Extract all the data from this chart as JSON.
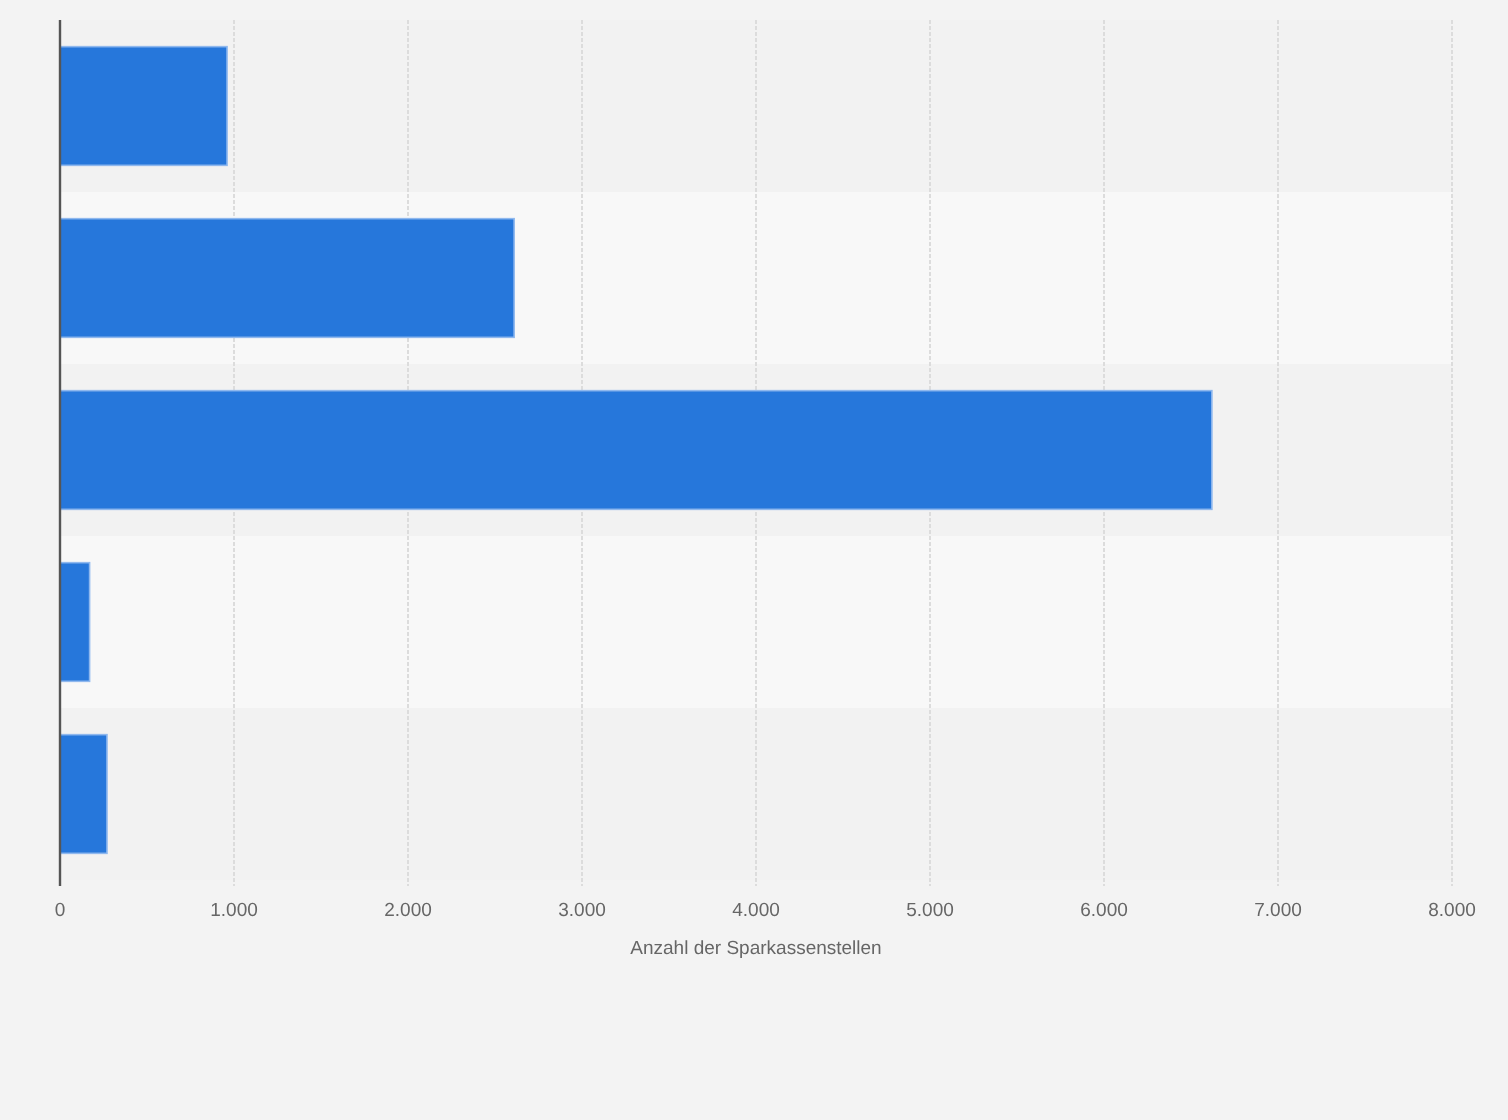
{
  "chart_data": {
    "type": "bar",
    "orientation": "horizontal",
    "categories": [
      null,
      null,
      null,
      null,
      null
    ],
    "values": [
      960,
      2610,
      6620,
      170,
      270
    ],
    "color": "#2677db",
    "xlabel": "Anzahl der Sparkassenstellen",
    "xlim": [
      0,
      8000
    ],
    "xticks": [
      0,
      {
        "value": 1000,
        "label": "1.000"
      },
      {
        "value": 2000,
        "label": "2.000"
      },
      {
        "value": 3000,
        "label": "3.000"
      },
      {
        "value": 4000,
        "label": "4.000"
      },
      {
        "value": 5000,
        "label": "5.000"
      },
      {
        "value": 6000,
        "label": "6.000"
      },
      {
        "value": 7000,
        "label": "7.000"
      },
      {
        "value": 8000,
        "label": "8.000"
      }
    ],
    "grid": "x"
  }
}
